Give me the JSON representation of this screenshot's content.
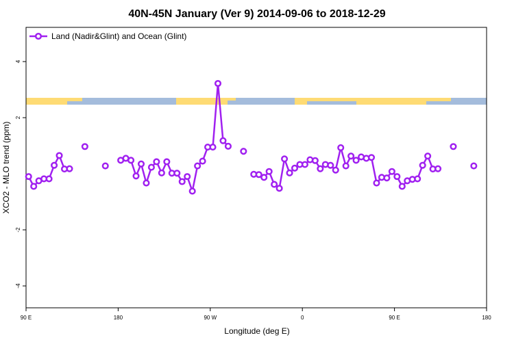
{
  "chart_data": {
    "type": "line",
    "title": "40N-45N January (Ver 9)   2014-09-06 to 2018-12-29",
    "x_label": "Longitude (deg E)",
    "y_label": "XCO2 - MLO trend (ppm)",
    "x": [
      92.5,
      97.5,
      102.5,
      107.5,
      112.5,
      117.5,
      122.5,
      127.5,
      132.5,
      137.5,
      147.5,
      152.5,
      167.5,
      172.5,
      182.5,
      187.5,
      192.5,
      197.5,
      202.5,
      207.5,
      212.5,
      217.5,
      222.5,
      227.5,
      232.5,
      237.5,
      242.5,
      247.5,
      252.5,
      257.5,
      262.5,
      267.5,
      272.5,
      277.5,
      282.5,
      287.5,
      292.5,
      302.5,
      307.5,
      312.5,
      317.5,
      322.5,
      327.5,
      332.5,
      337.5,
      342.5,
      347.5,
      352.5,
      357.5,
      362.5,
      367.5,
      372.5,
      377.5,
      382.5,
      387.5,
      392.5,
      397.5,
      402.5,
      407.5,
      412.5,
      417.5,
      422.5,
      427.5,
      432.5,
      437.5,
      442.5,
      447.5,
      452.5,
      457.5,
      462.5,
      467.5,
      472.5,
      477.5,
      482.5,
      487.5,
      492.5,
      497.5,
      507.5,
      512.5,
      527.5
    ],
    "series": [
      {
        "name": "Land (Nadir&Glint) and Ocean (Glint)",
        "color": "#a020f0",
        "values": [
          -0.1,
          -0.45,
          -0.25,
          -0.18,
          -0.18,
          0.3,
          0.65,
          0.17,
          0.18,
          null,
          0.97,
          null,
          0.28,
          null,
          0.48,
          0.55,
          0.48,
          -0.08,
          0.35,
          -0.33,
          0.23,
          0.43,
          0.03,
          0.43,
          0.02,
          0.02,
          -0.28,
          -0.1,
          -0.62,
          0.28,
          0.45,
          0.95,
          0.95,
          3.22,
          1.18,
          0.98,
          null,
          0.8,
          null,
          -0.02,
          -0.03,
          -0.13,
          0.08,
          -0.38,
          -0.52,
          0.53,
          0.03,
          0.2,
          0.33,
          0.33,
          0.5,
          0.47,
          0.18,
          0.33,
          0.3,
          0.13,
          0.93,
          0.28,
          0.63,
          0.48,
          0.6,
          0.55,
          0.58,
          -0.33,
          -0.13,
          -0.15,
          0.08,
          -0.1,
          -0.45,
          -0.25,
          -0.2,
          -0.18,
          0.3,
          0.63,
          0.17,
          0.18,
          null,
          0.97,
          null,
          0.28
        ]
      }
    ],
    "xlim": [
      90,
      540
    ],
    "xticks": [
      {
        "value": 90,
        "label": "90 E"
      },
      180,
      {
        "value": 270,
        "label": "90 W"
      },
      {
        "value": 360,
        "label": "0"
      },
      {
        "value": 450,
        "label": "90 E"
      },
      {
        "value": 540,
        "label": "180"
      }
    ],
    "ylim": [
      -4.78,
      5.22
    ],
    "yticks": [
      -4,
      -2,
      2,
      4
    ],
    "legend": "top-left"
  }
}
